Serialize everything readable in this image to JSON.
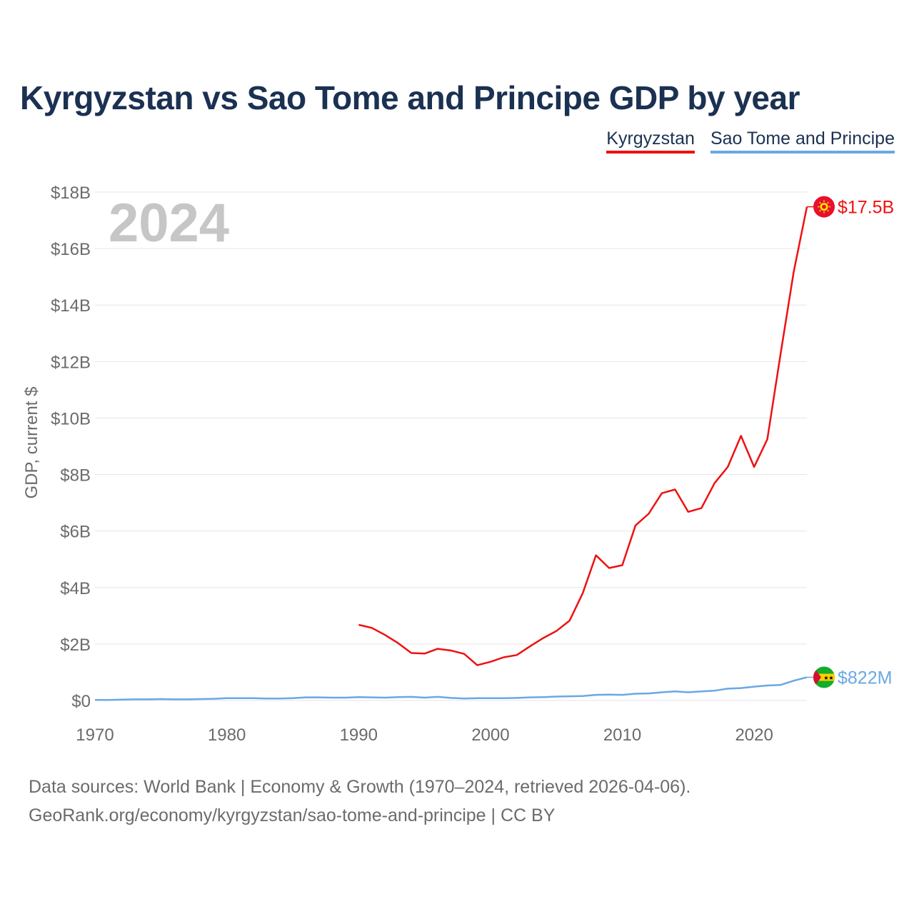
{
  "title": "Kyrgyzstan vs Sao Tome and Principe GDP by year",
  "year_watermark": "2024",
  "legend": [
    {
      "label": "Kyrgyzstan",
      "color": "#ee1111"
    },
    {
      "label": "Sao Tome and Principe",
      "color": "#6aa8e4"
    }
  ],
  "footer": {
    "line1": "Data sources: World Bank | Economy & Growth (1970–2024, retrieved 2026-04-06).",
    "line2": "GeoRank.org/economy/kyrgyzstan/sao-tome-and-principe | CC BY"
  },
  "chart_data": {
    "type": "line",
    "title": "Kyrgyzstan vs Sao Tome and Principe GDP by year",
    "xlabel": "",
    "ylabel": "GDP, current $",
    "xlim": [
      1970,
      2024
    ],
    "ylim": [
      0,
      18
    ],
    "y_unit": "billion USD",
    "grid": true,
    "legend_position": "top-right",
    "x_ticks": [
      1970,
      1980,
      1990,
      2000,
      2010,
      2020
    ],
    "x_tick_labels": [
      "1970",
      "1980",
      "1990",
      "2000",
      "2010",
      "2020"
    ],
    "y_ticks": [
      0,
      2,
      4,
      6,
      8,
      10,
      12,
      14,
      16,
      18
    ],
    "y_tick_labels": [
      "$0",
      "$2B",
      "$4B",
      "$6B",
      "$8B",
      "$10B",
      "$12B",
      "$14B",
      "$16B",
      "$18B"
    ],
    "series": [
      {
        "name": "Kyrgyzstan",
        "color": "#ee1111",
        "end_label": "$17.5B",
        "flag": "kyrgyzstan-flag",
        "x": [
          1990,
          1991,
          1992,
          1993,
          1994,
          1995,
          1996,
          1997,
          1998,
          1999,
          2000,
          2001,
          2002,
          2003,
          2004,
          2005,
          2006,
          2007,
          2008,
          2009,
          2010,
          2011,
          2012,
          2013,
          2014,
          2015,
          2016,
          2017,
          2018,
          2019,
          2020,
          2021,
          2022,
          2023,
          2024
        ],
        "values": [
          2.68,
          2.57,
          2.32,
          2.03,
          1.68,
          1.66,
          1.83,
          1.77,
          1.65,
          1.25,
          1.37,
          1.53,
          1.61,
          1.92,
          2.21,
          2.46,
          2.83,
          3.8,
          5.14,
          4.69,
          4.79,
          6.2,
          6.61,
          7.34,
          7.47,
          6.68,
          6.81,
          7.7,
          8.27,
          9.37,
          8.27,
          9.25,
          12.26,
          15.17,
          17.48
        ]
      },
      {
        "name": "Sao Tome and Principe",
        "color": "#6aa8e4",
        "end_label": "$822M",
        "flag": "sao-tome-flag",
        "x": [
          1970,
          1971,
          1972,
          1973,
          1974,
          1975,
          1976,
          1977,
          1978,
          1979,
          1980,
          1981,
          1982,
          1983,
          1984,
          1985,
          1986,
          1987,
          1988,
          1989,
          1990,
          1991,
          1992,
          1993,
          1994,
          1995,
          1996,
          1997,
          1998,
          1999,
          2000,
          2001,
          2002,
          2003,
          2004,
          2005,
          2006,
          2007,
          2008,
          2009,
          2010,
          2011,
          2012,
          2013,
          2014,
          2015,
          2016,
          2017,
          2018,
          2019,
          2020,
          2021,
          2022,
          2023,
          2024
        ],
        "values": [
          0.02,
          0.02,
          0.03,
          0.04,
          0.04,
          0.05,
          0.04,
          0.04,
          0.05,
          0.06,
          0.08,
          0.08,
          0.08,
          0.07,
          0.07,
          0.08,
          0.11,
          0.11,
          0.1,
          0.1,
          0.12,
          0.11,
          0.1,
          0.12,
          0.13,
          0.1,
          0.13,
          0.09,
          0.07,
          0.08,
          0.08,
          0.08,
          0.09,
          0.11,
          0.12,
          0.14,
          0.15,
          0.16,
          0.2,
          0.21,
          0.2,
          0.24,
          0.25,
          0.29,
          0.32,
          0.29,
          0.32,
          0.35,
          0.42,
          0.44,
          0.49,
          0.53,
          0.55,
          0.7,
          0.822
        ]
      }
    ]
  }
}
